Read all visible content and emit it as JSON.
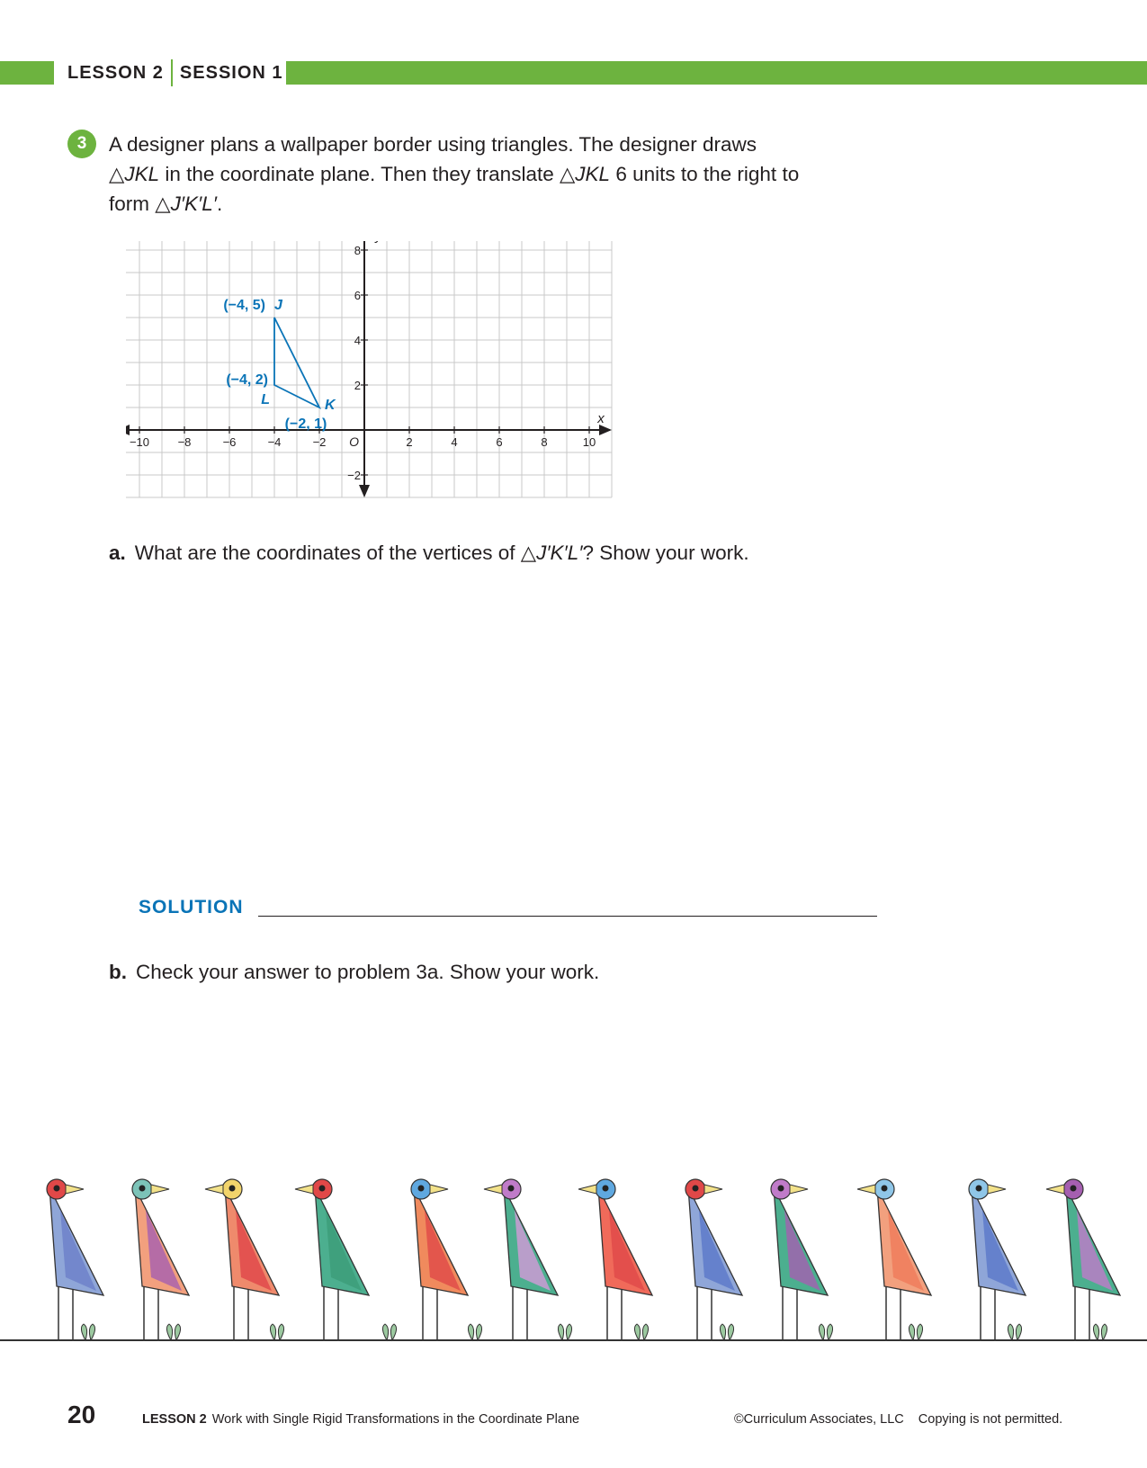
{
  "header": {
    "lesson": "LESSON 2",
    "session": "SESSION 1"
  },
  "problem": {
    "number": "3",
    "line1": "A designer plans a wallpaper border using triangles. The designer draws",
    "line2_tri": "△",
    "line2_name": "JKL",
    "line2_mid": " in the coordinate plane. Then they translate ",
    "line2_tri2": "△",
    "line2_name2": "JKL",
    "line2_end": " 6 units to the right to",
    "line3_start": "form ",
    "line3_tri": "△",
    "line3_name": "J′K′L′",
    "line3_end": "."
  },
  "chart_data": {
    "type": "scatter",
    "xlabel": "x",
    "ylabel": "y",
    "origin_label": "O",
    "xlim": [
      -11,
      11
    ],
    "ylim": [
      -3,
      9
    ],
    "grid": true,
    "x_ticks": [
      {
        "value": -10,
        "label": "−10"
      },
      {
        "value": -8,
        "label": "−8"
      },
      {
        "value": -6,
        "label": "−6"
      },
      {
        "value": -4,
        "label": "−4"
      },
      {
        "value": -2,
        "label": "−2"
      },
      {
        "value": 2,
        "label": "2"
      },
      {
        "value": 4,
        "label": "4"
      },
      {
        "value": 6,
        "label": "6"
      },
      {
        "value": 8,
        "label": "8"
      },
      {
        "value": 10,
        "label": "10"
      }
    ],
    "y_ticks": [
      {
        "value": -2,
        "label": "−2"
      },
      {
        "value": 2,
        "label": "2"
      },
      {
        "value": 4,
        "label": "4"
      },
      {
        "value": 6,
        "label": "6"
      },
      {
        "value": 8,
        "label": "8"
      }
    ],
    "series": [
      {
        "shape": "triangle",
        "color": "#0a74b7",
        "points": [
          {
            "name": "J",
            "x": -4,
            "y": 5,
            "coord_label": "(−4, 5)"
          },
          {
            "name": "K",
            "x": -2,
            "y": 1,
            "coord_label": "(−2, 1)"
          },
          {
            "name": "L",
            "x": -4,
            "y": 2,
            "coord_label": "(−4, 2)"
          }
        ]
      }
    ]
  },
  "part_a": {
    "letter": "a.",
    "text_start": "What are the coordinates of the vertices of ",
    "tri": "△",
    "name": "J′K′L′",
    "text_end": "? Show your work."
  },
  "solution_label": "SOLUTION",
  "part_b": {
    "letter": "b.",
    "text": "Check your answer to problem 3a. Show your work."
  },
  "colors": {
    "accent_green": "#6db33f",
    "accent_blue": "#0a74b7"
  },
  "footer": {
    "page_number": "20",
    "lesson": "LESSON 2",
    "title": "Work with Single Rigid Transformations in the Coordinate Plane",
    "copyright": "©Curriculum Associates, LLC",
    "notice": "Copying is not permitted."
  }
}
